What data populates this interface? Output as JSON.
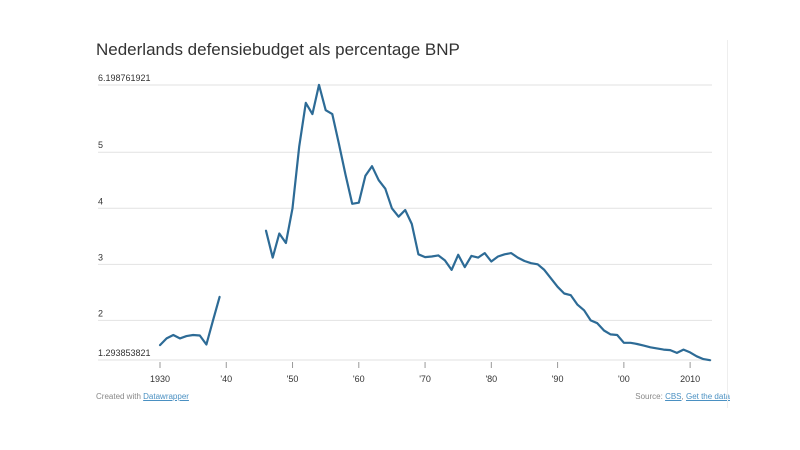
{
  "footer": {
    "created_prefix": "Created with ",
    "created_link": "Datawrapper",
    "source_prefix": "Source: ",
    "source_link": "CBS",
    "separator": ", ",
    "data_link": "Get the data"
  },
  "colors": {
    "line": "#2d6b96",
    "grid": "#e2e2e2",
    "text": "#333333",
    "link": "#4a90c2"
  },
  "chart_data": {
    "type": "line",
    "title": "Nederlands defensiebudget als percentage BNP",
    "xlabel": "",
    "ylabel": "",
    "ylim": [
      1.293853821,
      6.198761921
    ],
    "xlim": [
      1930,
      2013
    ],
    "grid": "horizontal",
    "y_ticks": [
      {
        "value": 6.198761921,
        "label": "6.198761921"
      },
      {
        "value": 5,
        "label": "5"
      },
      {
        "value": 4,
        "label": "4"
      },
      {
        "value": 3,
        "label": "3"
      },
      {
        "value": 2,
        "label": "2"
      },
      {
        "value": 1.293853821,
        "label": "1.293853821"
      }
    ],
    "x_ticks": [
      {
        "value": 1930,
        "label": "1930"
      },
      {
        "value": 1940,
        "label": "'40"
      },
      {
        "value": 1950,
        "label": "'50"
      },
      {
        "value": 1960,
        "label": "'60"
      },
      {
        "value": 1970,
        "label": "'70"
      },
      {
        "value": 1980,
        "label": "'80"
      },
      {
        "value": 1990,
        "label": "'90"
      },
      {
        "value": 2000,
        "label": "'00"
      },
      {
        "value": 2010,
        "label": "2010"
      }
    ],
    "series": [
      {
        "segments": [
          [
            [
              1930,
              1.56
            ],
            [
              1931,
              1.68
            ],
            [
              1932,
              1.74
            ],
            [
              1933,
              1.68
            ],
            [
              1934,
              1.72
            ],
            [
              1935,
              1.74
            ],
            [
              1936,
              1.73
            ],
            [
              1937,
              1.57
            ],
            [
              1938,
              2.0
            ],
            [
              1939,
              2.42
            ]
          ],
          [
            [
              1946,
              3.6
            ],
            [
              1947,
              3.12
            ],
            [
              1948,
              3.55
            ],
            [
              1949,
              3.38
            ],
            [
              1950,
              4.0
            ],
            [
              1951,
              5.1
            ],
            [
              1952,
              5.88
            ],
            [
              1953,
              5.68
            ],
            [
              1954,
              6.2
            ],
            [
              1955,
              5.75
            ],
            [
              1956,
              5.68
            ],
            [
              1957,
              5.15
            ],
            [
              1958,
              4.6
            ],
            [
              1959,
              4.08
            ],
            [
              1960,
              4.1
            ],
            [
              1961,
              4.58
            ],
            [
              1962,
              4.75
            ],
            [
              1963,
              4.5
            ],
            [
              1964,
              4.35
            ],
            [
              1965,
              4.0
            ],
            [
              1966,
              3.85
            ],
            [
              1967,
              3.97
            ],
            [
              1968,
              3.72
            ],
            [
              1969,
              3.18
            ],
            [
              1970,
              3.13
            ],
            [
              1971,
              3.14
            ],
            [
              1972,
              3.16
            ],
            [
              1973,
              3.07
            ],
            [
              1974,
              2.9
            ],
            [
              1975,
              3.17
            ],
            [
              1976,
              2.95
            ],
            [
              1977,
              3.15
            ],
            [
              1978,
              3.12
            ],
            [
              1979,
              3.2
            ],
            [
              1980,
              3.05
            ],
            [
              1981,
              3.14
            ],
            [
              1982,
              3.18
            ],
            [
              1983,
              3.2
            ],
            [
              1984,
              3.12
            ],
            [
              1985,
              3.06
            ],
            [
              1986,
              3.02
            ],
            [
              1987,
              3.0
            ],
            [
              1988,
              2.9
            ],
            [
              1989,
              2.75
            ],
            [
              1990,
              2.6
            ],
            [
              1991,
              2.48
            ],
            [
              1992,
              2.45
            ],
            [
              1993,
              2.28
            ],
            [
              1994,
              2.18
            ],
            [
              1995,
              2.0
            ],
            [
              1996,
              1.95
            ],
            [
              1997,
              1.82
            ],
            [
              1998,
              1.75
            ],
            [
              1999,
              1.74
            ],
            [
              2000,
              1.6
            ],
            [
              2001,
              1.6
            ],
            [
              2002,
              1.58
            ],
            [
              2003,
              1.55
            ],
            [
              2004,
              1.52
            ],
            [
              2005,
              1.5
            ],
            [
              2006,
              1.48
            ],
            [
              2007,
              1.47
            ],
            [
              2008,
              1.42
            ],
            [
              2009,
              1.48
            ],
            [
              2010,
              1.43
            ],
            [
              2011,
              1.36
            ],
            [
              2012,
              1.31
            ],
            [
              2013,
              1.29
            ]
          ]
        ]
      }
    ]
  }
}
